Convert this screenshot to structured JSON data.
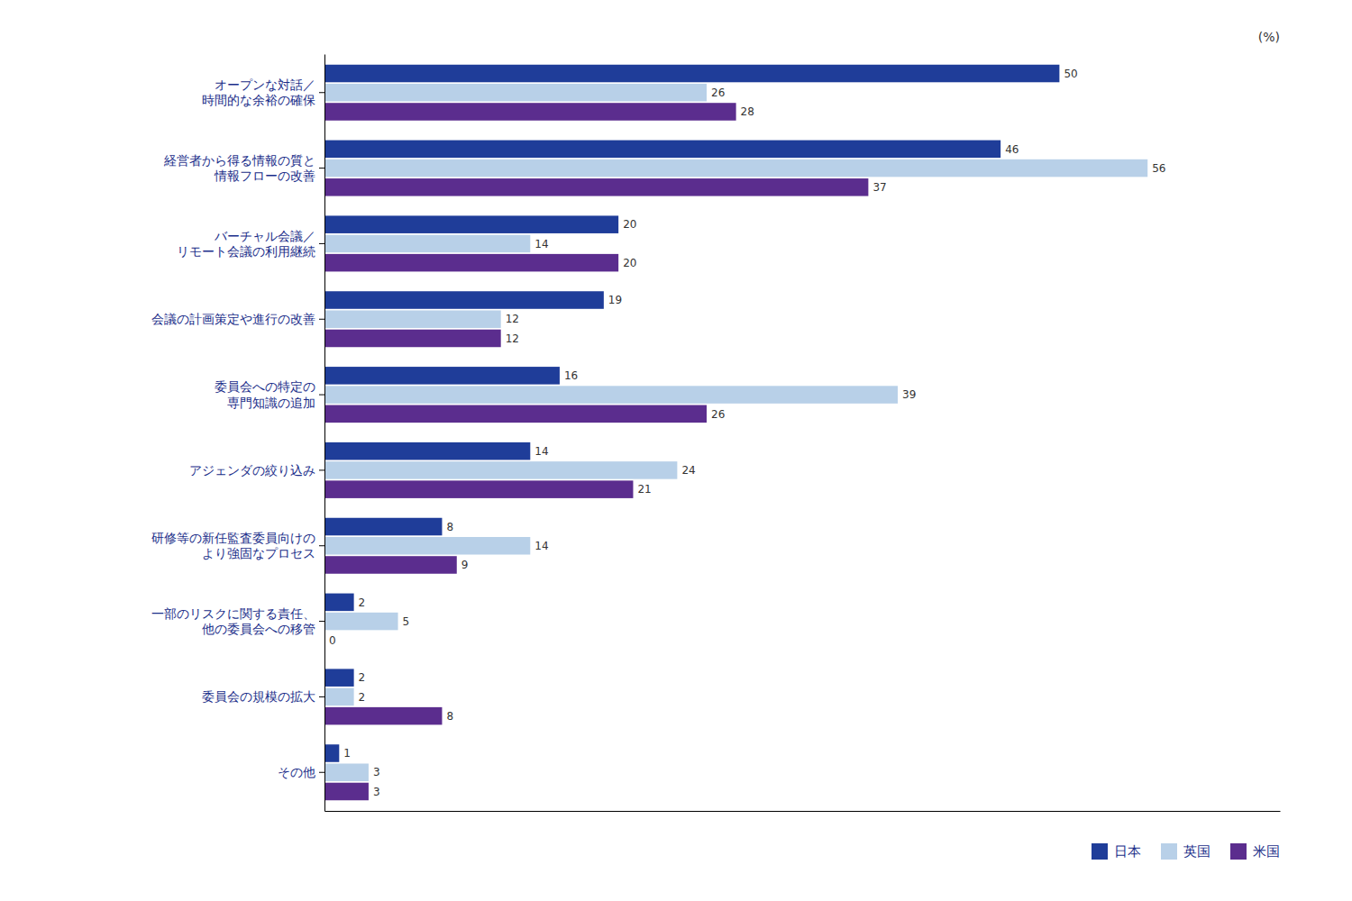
{
  "chart_data": {
    "type": "bar",
    "orientation": "horizontal",
    "categories": [
      "オープンな対話／\n時間的な余裕の確保",
      "経営者から得る情報の質と\n情報フローの改善",
      "バーチャル会議／\nリモート会議の利用継続",
      "会議の計画策定や進行の改善",
      "委員会への特定の\n専門知識の追加",
      "アジェンダの絞り込み",
      "研修等の新任監査委員向けの\nより強固なプロセス",
      "一部のリスクに関する責任、\n他の委員会への移管",
      "委員会の規模の拡大",
      "その他"
    ],
    "series": [
      {
        "name": "日本",
        "color": "#1f3d99",
        "values": [
          50,
          46,
          20,
          19,
          16,
          14,
          8,
          2,
          2,
          1
        ]
      },
      {
        "name": "英国",
        "color": "#b8d0e8",
        "values": [
          26,
          56,
          14,
          12,
          39,
          24,
          14,
          5,
          2,
          3
        ]
      },
      {
        "name": "米国",
        "color": "#5b2d8e",
        "values": [
          28,
          37,
          20,
          12,
          26,
          21,
          9,
          0,
          8,
          3
        ]
      }
    ],
    "xlim": [
      0,
      65
    ],
    "xticks": [],
    "tick_labels": "y",
    "data_labels": true,
    "grid": false,
    "legend": "lower right",
    "annotations": [
      {
        "text": "(%)"
      }
    ]
  }
}
